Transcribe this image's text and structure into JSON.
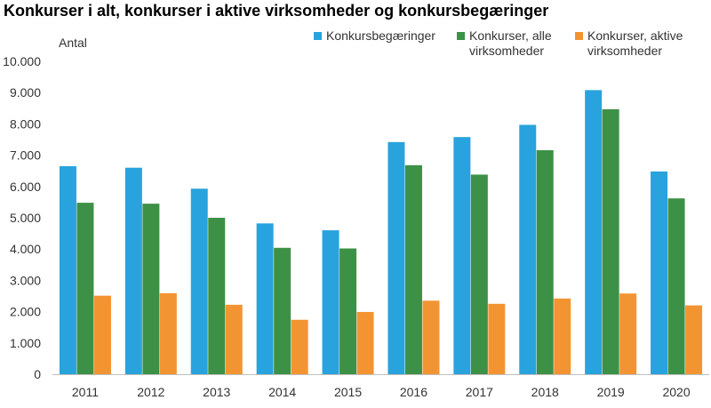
{
  "chart_data": {
    "type": "bar",
    "title": "Konkurser i alt, konkurser i aktive virksomheder og konkursbegæringer",
    "ylabel": "Antal",
    "xlabel": "",
    "categories": [
      "2011",
      "2012",
      "2013",
      "2014",
      "2015",
      "2016",
      "2017",
      "2018",
      "2019",
      "2020"
    ],
    "ylim": [
      0,
      10000
    ],
    "yticks": [
      0,
      1000,
      2000,
      3000,
      4000,
      5000,
      6000,
      7000,
      8000,
      9000,
      10000
    ],
    "ytick_labels": [
      "0",
      "1.000",
      "2.000",
      "3.000",
      "4.000",
      "5.000",
      "6.000",
      "7.000",
      "8.000",
      "9.000",
      "10.000"
    ],
    "grid": false,
    "legend_position": "top-right",
    "series": [
      {
        "name": "Konkursbegæringer",
        "color": "#29a3dd",
        "values": [
          6650,
          6600,
          5930,
          4820,
          4600,
          7420,
          7580,
          7970,
          9080,
          6480
        ]
      },
      {
        "name": "Konkurser, alle\nvirksomheder",
        "color": "#3d9146",
        "values": [
          5480,
          5450,
          5000,
          4040,
          4020,
          6680,
          6380,
          7160,
          8470,
          5620
        ]
      },
      {
        "name": "Konkurser, aktive\nvirksomheder",
        "color": "#f39433",
        "values": [
          2510,
          2590,
          2220,
          1740,
          1990,
          2350,
          2250,
          2420,
          2580,
          2200
        ]
      }
    ]
  }
}
